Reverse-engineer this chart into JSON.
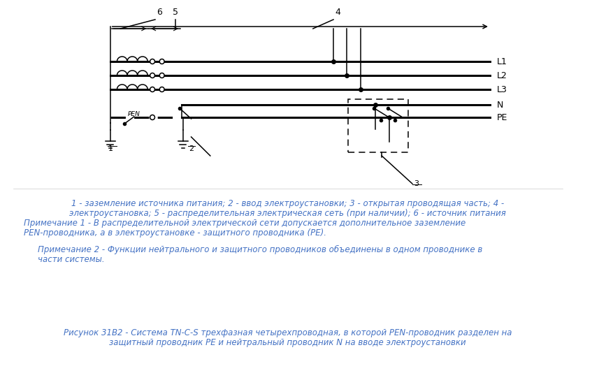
{
  "bg_color": "#ffffff",
  "line_color": "#000000",
  "text_color": "#4472c4",
  "note1_line1": "1 - заземление источника питания; 2 - ввод электроустановки; 3 - открытая проводящая часть; 4 -",
  "note1_line2": "электроустановка; 5 - распределительная электрическая сеть (при наличии); 6 - источник питания",
  "note1_line3": "Примечание 1 - В распределительной электрической сети допускается дополнительное заземление",
  "note1_line4": "PEN-проводника, а в электроустановке - защитного проводника (PE).",
  "note2_line1": "Примечание 2 - Функции нейтрального и защитного проводников объединены в одном проводнике в",
  "note2_line2": "части системы.",
  "title_line1": "Рисунок 31В2 - Система TN-C-S трехфазная четырехпроводная, в которой PEN-проводник разделен на",
  "title_line2": "защитный проводник PE и нейтральный проводник N на вводе электроустановки",
  "figsize": [
    8.47,
    5.54
  ],
  "dpi": 100
}
